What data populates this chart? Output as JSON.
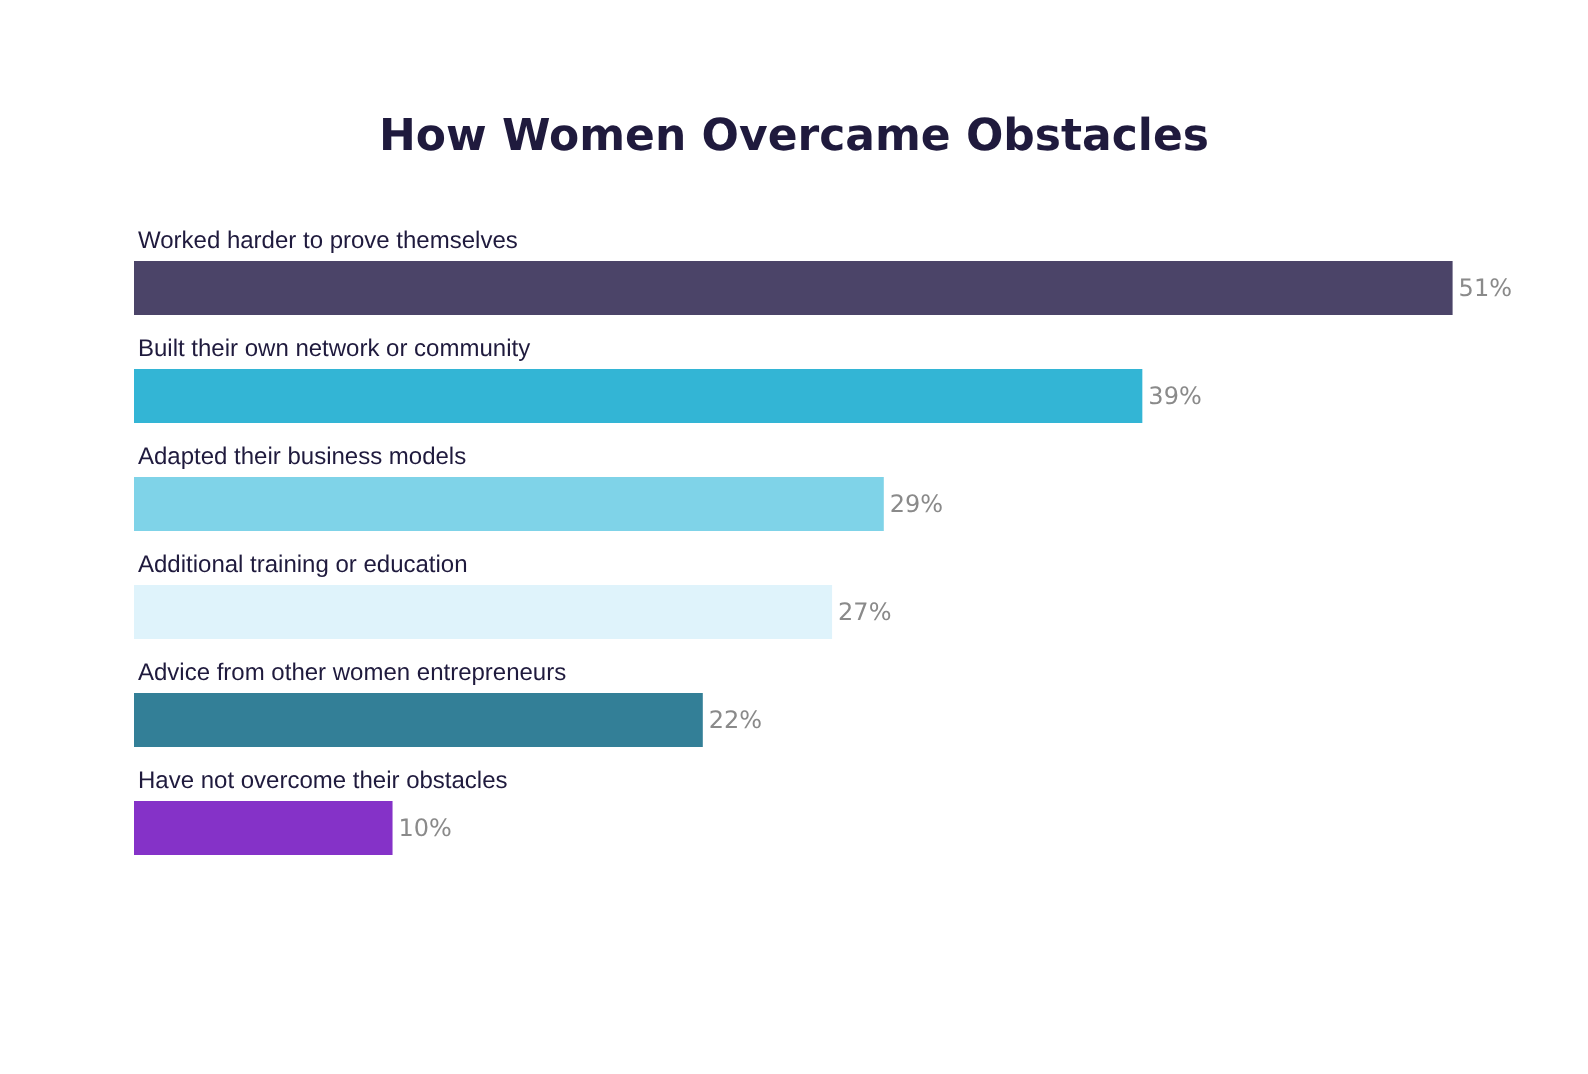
{
  "chart_data": {
    "type": "bar",
    "orientation": "horizontal",
    "title": "How Women Overcame Obstacles",
    "categories": [
      "Worked harder to prove themselves",
      "Built their own network or community",
      "Adapted their business models",
      "Additional training or education",
      "Advice from other women entrepreneurs",
      "Have not overcome their obstacles"
    ],
    "values": [
      51,
      39,
      29,
      27,
      22,
      10
    ],
    "colors": [
      "#4b4468",
      "#33b5d5",
      "#7fd3e8",
      "#dff3fb",
      "#337f97",
      "#8532c8"
    ],
    "value_labels": [
      "51%",
      "39%",
      "29%",
      "27%",
      "22%",
      "10%"
    ],
    "tick_labels": "y",
    "grid": false,
    "legend": false
  }
}
